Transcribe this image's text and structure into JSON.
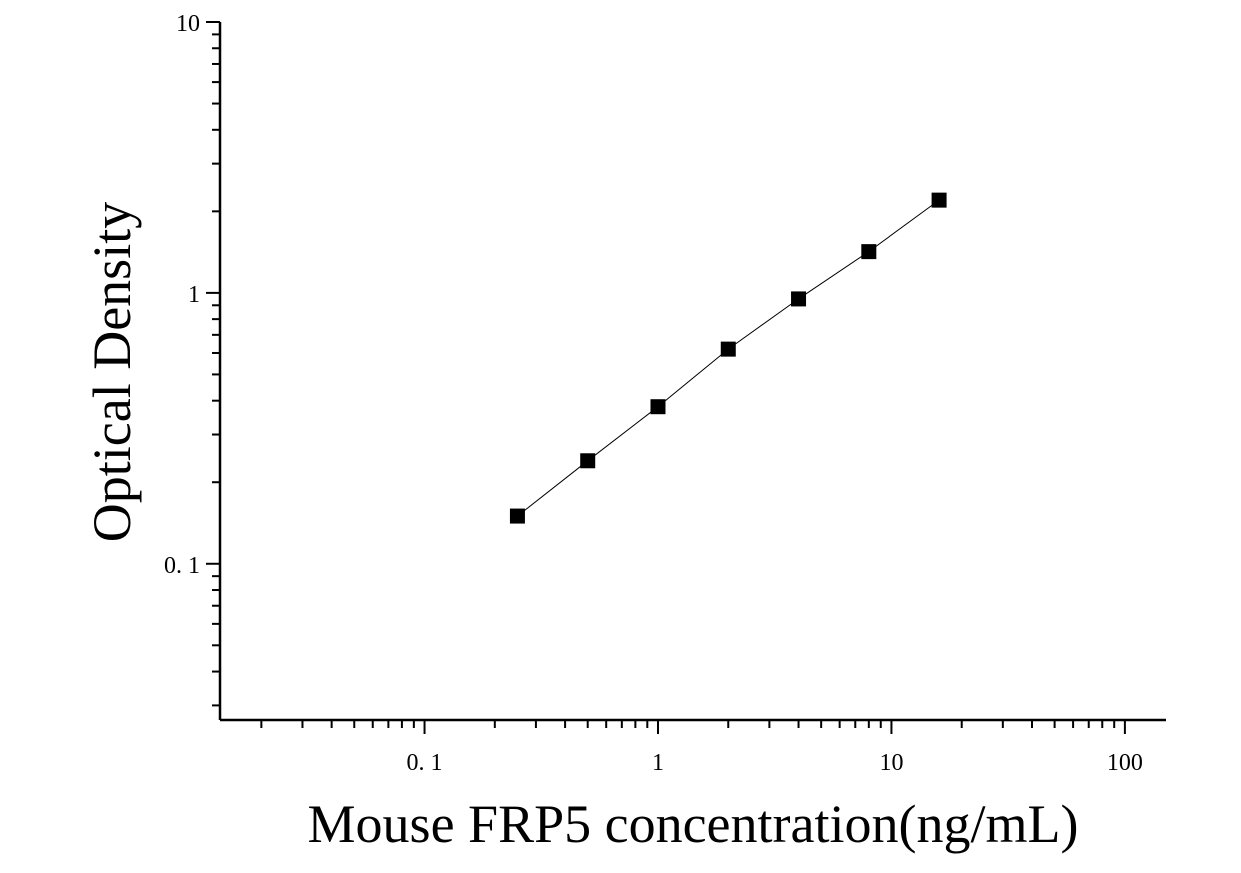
{
  "chart_data": {
    "type": "scatter",
    "x_scale": "log",
    "y_scale": "log",
    "xlabel": "Mouse FRP5 concentration(ng/mL)",
    "ylabel": "Optical Density",
    "xlim": [
      0.0133,
      150
    ],
    "ylim": [
      0.0265,
      10
    ],
    "x_tick_labels": [
      {
        "value": 0.1,
        "label": "0. 1"
      },
      {
        "value": 1,
        "label": "1"
      },
      {
        "value": 10,
        "label": "10"
      },
      {
        "value": 100,
        "label": "100"
      }
    ],
    "y_tick_labels": [
      {
        "value": 0.1,
        "label": "0. 1"
      },
      {
        "value": 1,
        "label": "1"
      },
      {
        "value": 10,
        "label": "10"
      }
    ],
    "series": [
      {
        "x": [
          0.25,
          0.5,
          1,
          2,
          4,
          8,
          16
        ],
        "y": [
          0.15,
          0.24,
          0.38,
          0.62,
          0.95,
          1.42,
          2.2
        ],
        "marker": "square",
        "line": true,
        "color": "#000000"
      }
    ],
    "grid": false,
    "legend": "none"
  }
}
